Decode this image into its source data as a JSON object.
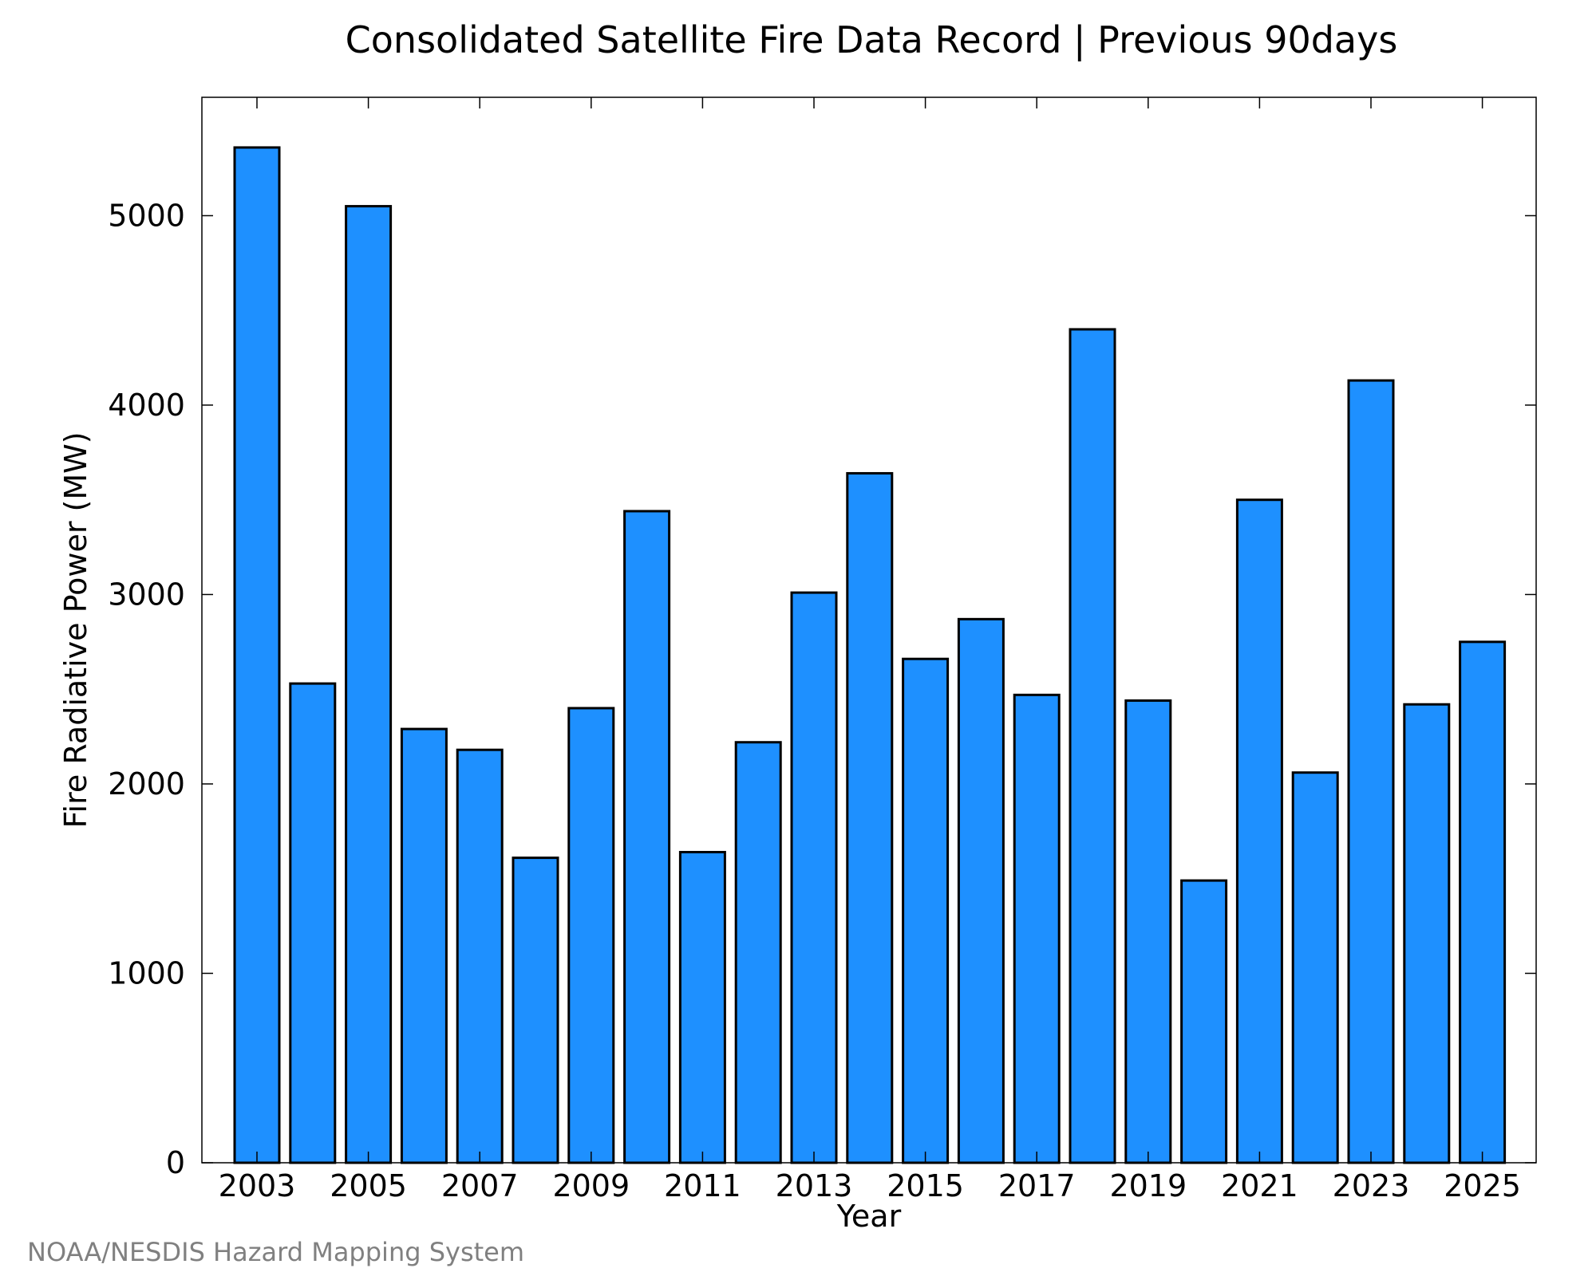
{
  "chart_data": {
    "type": "bar",
    "title": "Consolidated Satellite Fire Data Record | Previous 90days",
    "xlabel": "Year",
    "ylabel": "Fire Radiative Power (MW)",
    "categories": [
      "2003",
      "2004",
      "2005",
      "2006",
      "2007",
      "2008",
      "2009",
      "2010",
      "2011",
      "2012",
      "2013",
      "2014",
      "2015",
      "2016",
      "2017",
      "2018",
      "2019",
      "2020",
      "2021",
      "2022",
      "2023",
      "2024",
      "2025"
    ],
    "x_tick_labels": [
      "2003",
      "2005",
      "2007",
      "2009",
      "2011",
      "2013",
      "2015",
      "2017",
      "2019",
      "2021",
      "2023",
      "2025"
    ],
    "values": [
      5360,
      2530,
      5050,
      2290,
      2180,
      1610,
      2400,
      3440,
      1640,
      2220,
      3010,
      3640,
      2660,
      2870,
      2470,
      4400,
      2440,
      1490,
      3500,
      2060,
      4130,
      2420,
      2750
    ],
    "ylim": [
      0,
      5625
    ],
    "y_ticks": [
      0,
      1000,
      2000,
      3000,
      4000,
      5000
    ],
    "bar_color": "#1e90ff",
    "grid": false,
    "legend": "none"
  },
  "credit": "NOAA/NESDIS Hazard Mapping System"
}
